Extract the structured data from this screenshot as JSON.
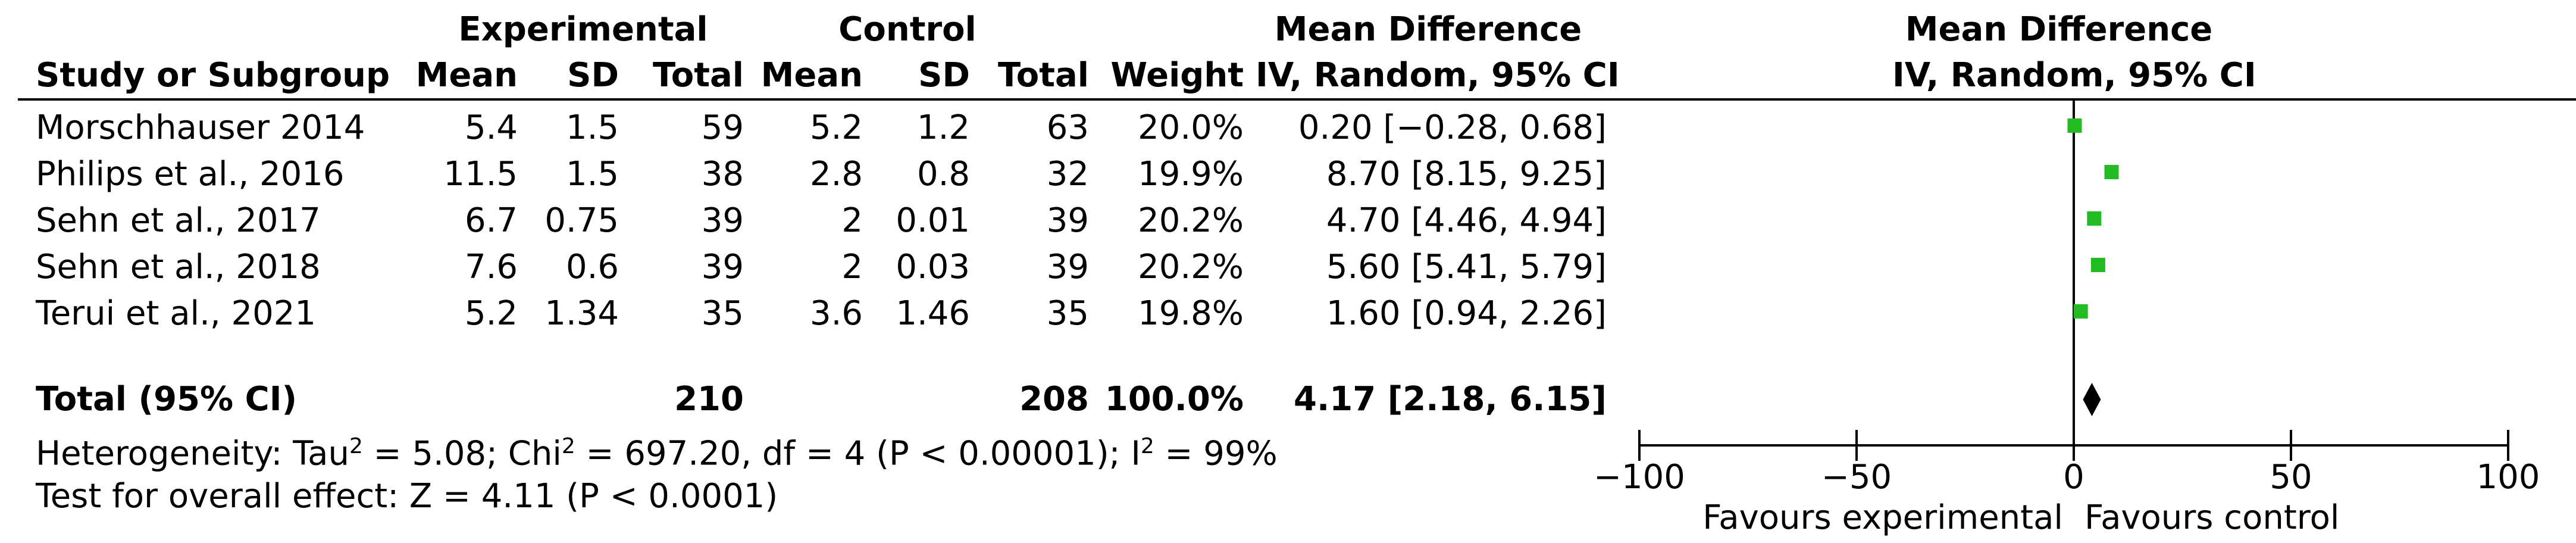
{
  "header": {
    "group1": "Experimental",
    "group2": "Control",
    "md_title": "Mean Difference",
    "md_sub": "IV, Random, 95% CI",
    "plot_title": "Mean Difference",
    "plot_sub": "IV, Random, 95% CI",
    "col_study": "Study or Subgroup",
    "col_mean1": "Mean",
    "col_sd1": "SD",
    "col_total1": "Total",
    "col_mean2": "Mean",
    "col_sd2": "SD",
    "col_total2": "Total",
    "col_weight": "Weight"
  },
  "studies": [
    {
      "name": "Morschhauser 2014",
      "mean1": "5.4",
      "sd1": "1.5",
      "total1": "59",
      "mean2": "5.2",
      "sd2": "1.2",
      "total2": "63",
      "weight": "20.0%",
      "ci": "0.20 [−0.28, 0.68]"
    },
    {
      "name": "Philips et al., 2016",
      "mean1": "11.5",
      "sd1": "1.5",
      "total1": "38",
      "mean2": "2.8",
      "sd2": "0.8",
      "total2": "32",
      "weight": "19.9%",
      "ci": "8.70 [8.15, 9.25]"
    },
    {
      "name": "Sehn et al., 2017",
      "mean1": "6.7",
      "sd1": "0.75",
      "total1": "39",
      "mean2": "2",
      "sd2": "0.01",
      "total2": "39",
      "weight": "20.2%",
      "ci": "4.70 [4.46, 4.94]"
    },
    {
      "name": "Sehn et al., 2018",
      "mean1": "7.6",
      "sd1": "0.6",
      "total1": "39",
      "mean2": "2",
      "sd2": "0.03",
      "total2": "39",
      "weight": "20.2%",
      "ci": "5.60 [5.41, 5.79]"
    },
    {
      "name": "Terui et al., 2021",
      "mean1": "5.2",
      "sd1": "1.34",
      "total1": "35",
      "mean2": "3.6",
      "sd2": "1.46",
      "total2": "35",
      "weight": "19.8%",
      "ci": "1.60 [0.94, 2.26]"
    }
  ],
  "total": {
    "label": "Total (95% CI)",
    "total1": "210",
    "total2": "208",
    "weight": "100.0%",
    "ci": "4.17 [2.18, 6.15]"
  },
  "heterogeneity_label": "Heterogeneity: Tau",
  "heterogeneity_rest1": " = 5.08; Chi",
  "heterogeneity_rest2": " = 697.20, df = 4 (P < 0.00001); I",
  "heterogeneity_rest3": " = 99%",
  "sup2": "2",
  "overall_effect": "Test for overall effect: Z = 4.11 (P < 0.0001)",
  "chart_data": {
    "type": "forest",
    "xlim": [
      -100,
      100
    ],
    "xticks": [
      -100,
      -50,
      0,
      50,
      100
    ],
    "xtick_labels": [
      "−100",
      "−50",
      "0",
      "50",
      "100"
    ],
    "xlabel_left": "Favours experimental",
    "xlabel_right": "Favours control",
    "marker_color": "#22bb22",
    "studies": [
      {
        "name": "Morschhauser 2014",
        "md": 0.2,
        "lo": -0.28,
        "hi": 0.68
      },
      {
        "name": "Philips et al., 2016",
        "md": 8.7,
        "lo": 8.15,
        "hi": 9.25
      },
      {
        "name": "Sehn et al., 2017",
        "md": 4.7,
        "lo": 4.46,
        "hi": 4.94
      },
      {
        "name": "Sehn et al., 2018",
        "md": 5.6,
        "lo": 5.41,
        "hi": 5.79
      },
      {
        "name": "Terui et al., 2021",
        "md": 1.6,
        "lo": 0.94,
        "hi": 2.26
      }
    ],
    "pooled": {
      "md": 4.17,
      "lo": 2.18,
      "hi": 6.15
    }
  }
}
